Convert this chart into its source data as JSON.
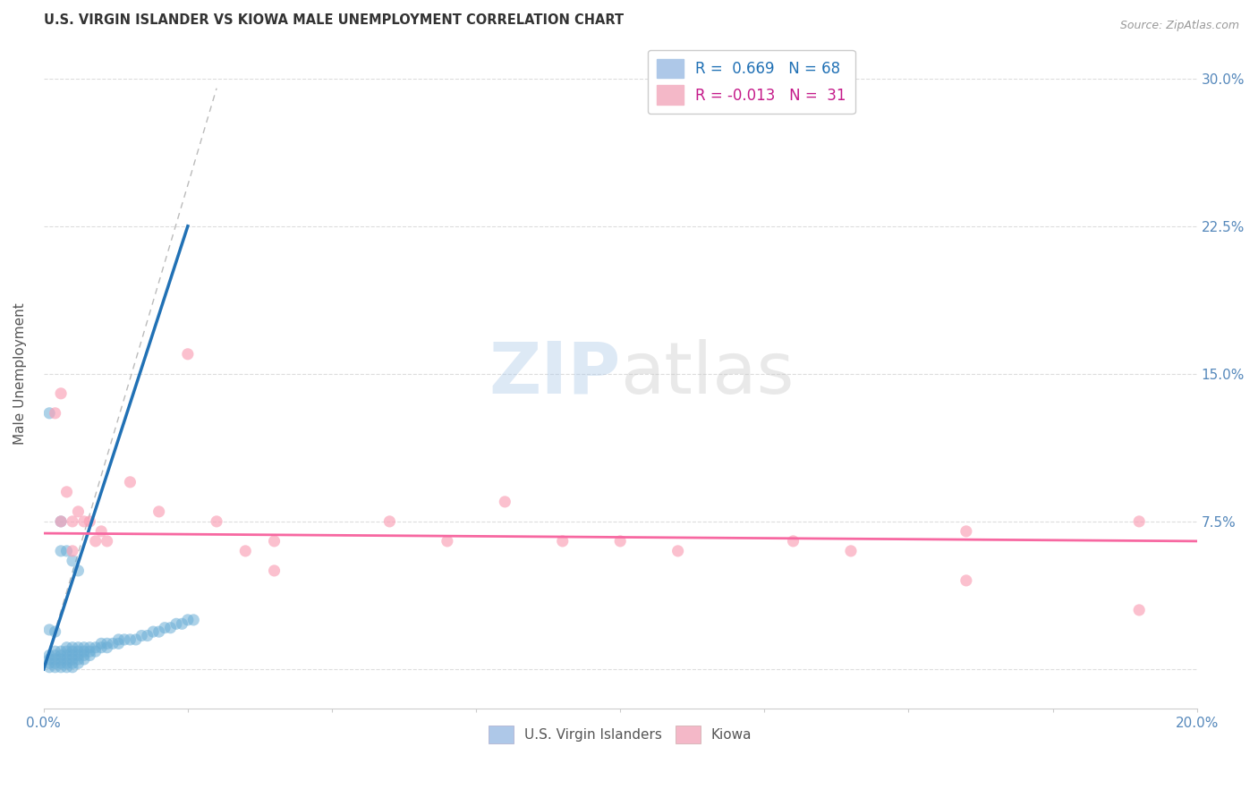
{
  "title": "U.S. VIRGIN ISLANDER VS KIOWA MALE UNEMPLOYMENT CORRELATION CHART",
  "source": "Source: ZipAtlas.com",
  "ylabel": "Male Unemployment",
  "xlim": [
    0.0,
    0.2
  ],
  "ylim": [
    -0.02,
    0.32
  ],
  "xtick_positions": [
    0.0,
    0.025,
    0.05,
    0.075,
    0.1,
    0.125,
    0.15,
    0.175,
    0.2
  ],
  "xtick_labels": [
    "0.0%",
    "",
    "",
    "",
    "",
    "",
    "",
    "",
    "20.0%"
  ],
  "ytick_positions": [
    0.0,
    0.075,
    0.15,
    0.225,
    0.3
  ],
  "ytick_labels": [
    "",
    "7.5%",
    "15.0%",
    "22.5%",
    "30.0%"
  ],
  "legend1_R": "0.669",
  "legend1_N": "68",
  "legend2_R": "-0.013",
  "legend2_N": "31",
  "legend_labels": [
    "U.S. Virgin Islanders",
    "Kiowa"
  ],
  "blue_color": "#6baed6",
  "pink_color": "#fa9fb5",
  "blue_line_color": "#2171b5",
  "pink_line_color": "#f768a1",
  "dash_line_color": "#bbbbbb",
  "watermark": "ZIPatlas",
  "blue_scatter": [
    [
      0.001,
      0.001
    ],
    [
      0.001,
      0.003
    ],
    [
      0.001,
      0.005
    ],
    [
      0.001,
      0.007
    ],
    [
      0.002,
      0.001
    ],
    [
      0.002,
      0.003
    ],
    [
      0.002,
      0.005
    ],
    [
      0.002,
      0.007
    ],
    [
      0.002,
      0.009
    ],
    [
      0.003,
      0.001
    ],
    [
      0.003,
      0.003
    ],
    [
      0.003,
      0.005
    ],
    [
      0.003,
      0.007
    ],
    [
      0.003,
      0.009
    ],
    [
      0.004,
      0.001
    ],
    [
      0.004,
      0.003
    ],
    [
      0.004,
      0.005
    ],
    [
      0.004,
      0.007
    ],
    [
      0.004,
      0.009
    ],
    [
      0.004,
      0.011
    ],
    [
      0.005,
      0.001
    ],
    [
      0.005,
      0.003
    ],
    [
      0.005,
      0.005
    ],
    [
      0.005,
      0.007
    ],
    [
      0.005,
      0.009
    ],
    [
      0.005,
      0.011
    ],
    [
      0.006,
      0.003
    ],
    [
      0.006,
      0.005
    ],
    [
      0.006,
      0.007
    ],
    [
      0.006,
      0.009
    ],
    [
      0.006,
      0.011
    ],
    [
      0.007,
      0.005
    ],
    [
      0.007,
      0.007
    ],
    [
      0.007,
      0.009
    ],
    [
      0.007,
      0.011
    ],
    [
      0.008,
      0.007
    ],
    [
      0.008,
      0.009
    ],
    [
      0.008,
      0.011
    ],
    [
      0.009,
      0.009
    ],
    [
      0.009,
      0.011
    ],
    [
      0.01,
      0.011
    ],
    [
      0.01,
      0.013
    ],
    [
      0.011,
      0.011
    ],
    [
      0.011,
      0.013
    ],
    [
      0.012,
      0.013
    ],
    [
      0.013,
      0.013
    ],
    [
      0.013,
      0.015
    ],
    [
      0.014,
      0.015
    ],
    [
      0.015,
      0.015
    ],
    [
      0.016,
      0.015
    ],
    [
      0.017,
      0.017
    ],
    [
      0.018,
      0.017
    ],
    [
      0.019,
      0.019
    ],
    [
      0.02,
      0.019
    ],
    [
      0.021,
      0.021
    ],
    [
      0.022,
      0.021
    ],
    [
      0.023,
      0.023
    ],
    [
      0.024,
      0.023
    ],
    [
      0.025,
      0.025
    ],
    [
      0.026,
      0.025
    ],
    [
      0.001,
      0.02
    ],
    [
      0.001,
      0.13
    ],
    [
      0.002,
      0.019
    ],
    [
      0.003,
      0.06
    ],
    [
      0.003,
      0.075
    ],
    [
      0.004,
      0.06
    ],
    [
      0.005,
      0.055
    ],
    [
      0.006,
      0.05
    ]
  ],
  "pink_scatter": [
    [
      0.002,
      0.13
    ],
    [
      0.003,
      0.14
    ],
    [
      0.003,
      0.075
    ],
    [
      0.004,
      0.09
    ],
    [
      0.005,
      0.075
    ],
    [
      0.005,
      0.06
    ],
    [
      0.006,
      0.08
    ],
    [
      0.007,
      0.075
    ],
    [
      0.008,
      0.075
    ],
    [
      0.009,
      0.065
    ],
    [
      0.01,
      0.07
    ],
    [
      0.011,
      0.065
    ],
    [
      0.015,
      0.095
    ],
    [
      0.02,
      0.08
    ],
    [
      0.025,
      0.16
    ],
    [
      0.03,
      0.075
    ],
    [
      0.035,
      0.06
    ],
    [
      0.04,
      0.065
    ],
    [
      0.04,
      0.05
    ],
    [
      0.06,
      0.075
    ],
    [
      0.07,
      0.065
    ],
    [
      0.08,
      0.085
    ],
    [
      0.09,
      0.065
    ],
    [
      0.1,
      0.065
    ],
    [
      0.11,
      0.06
    ],
    [
      0.13,
      0.065
    ],
    [
      0.14,
      0.06
    ],
    [
      0.16,
      0.07
    ],
    [
      0.16,
      0.045
    ],
    [
      0.19,
      0.075
    ],
    [
      0.19,
      0.03
    ]
  ],
  "blue_line_x": [
    0.0,
    0.025
  ],
  "blue_line_y": [
    0.0,
    0.225
  ],
  "pink_line_x": [
    0.0,
    0.2
  ],
  "pink_line_y": [
    0.069,
    0.065
  ],
  "dash_line_x": [
    0.0,
    0.03
  ],
  "dash_line_y": [
    0.0,
    0.295
  ]
}
